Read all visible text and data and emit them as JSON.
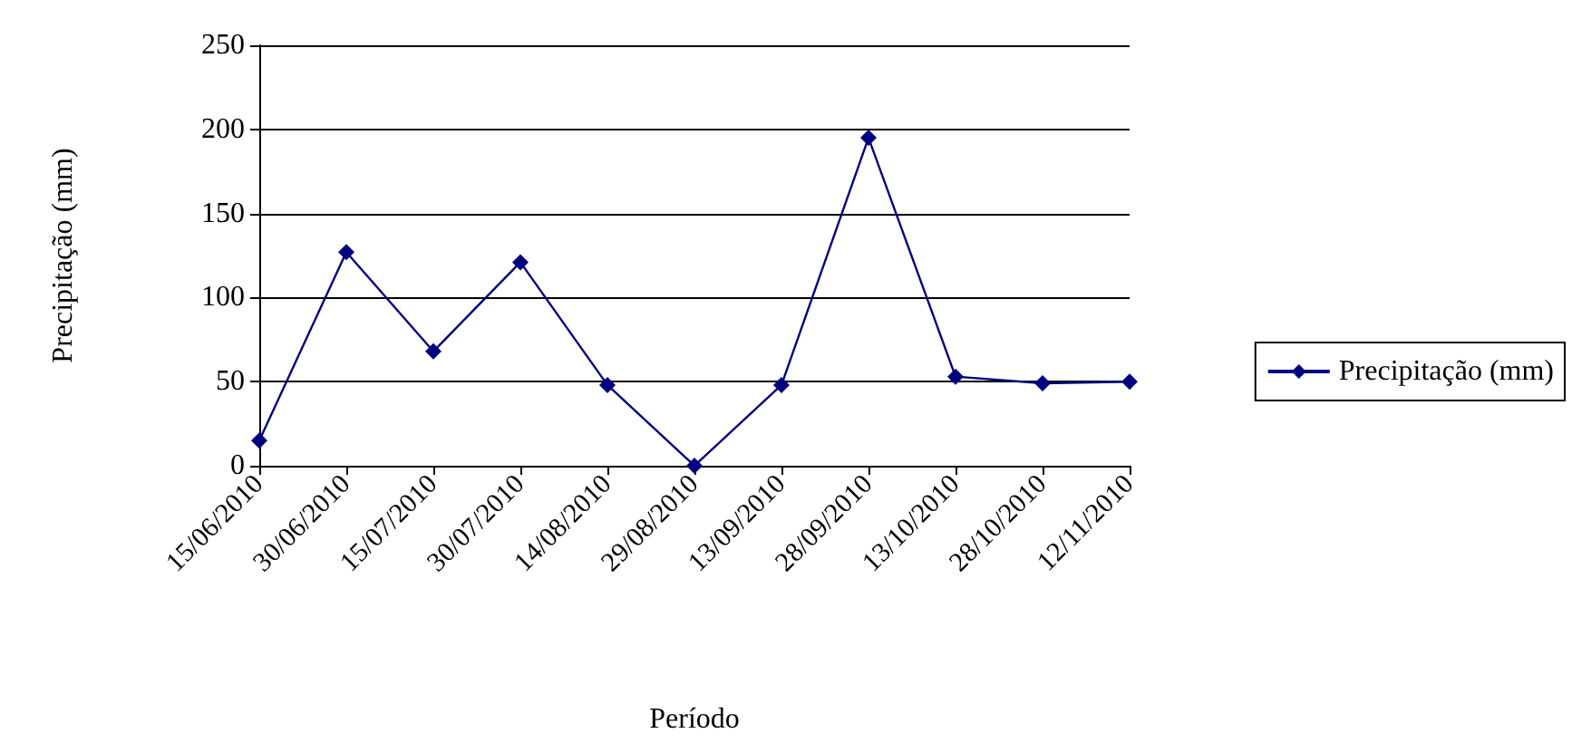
{
  "chart_data": {
    "type": "line",
    "xlabel": "Período",
    "ylabel": "Precipitação (mm)",
    "categories": [
      "15/06/2010",
      "30/06/2010",
      "15/07/2010",
      "30/07/2010",
      "14/08/2010",
      "29/08/2010",
      "13/09/2010",
      "28/09/2010",
      "13/10/2010",
      "28/10/2010",
      "12/11/2010"
    ],
    "series": [
      {
        "name": "Precipitação (mm)",
        "color": "#000080",
        "values": [
          15,
          127,
          68,
          121,
          48,
          0,
          48,
          195,
          53,
          49,
          50
        ]
      }
    ],
    "ylim": [
      0,
      250
    ],
    "yticks": [
      0,
      50,
      100,
      150,
      200,
      250
    ],
    "grid": "y",
    "legend": "right",
    "marker": "diamond",
    "line_style": "solid"
  }
}
